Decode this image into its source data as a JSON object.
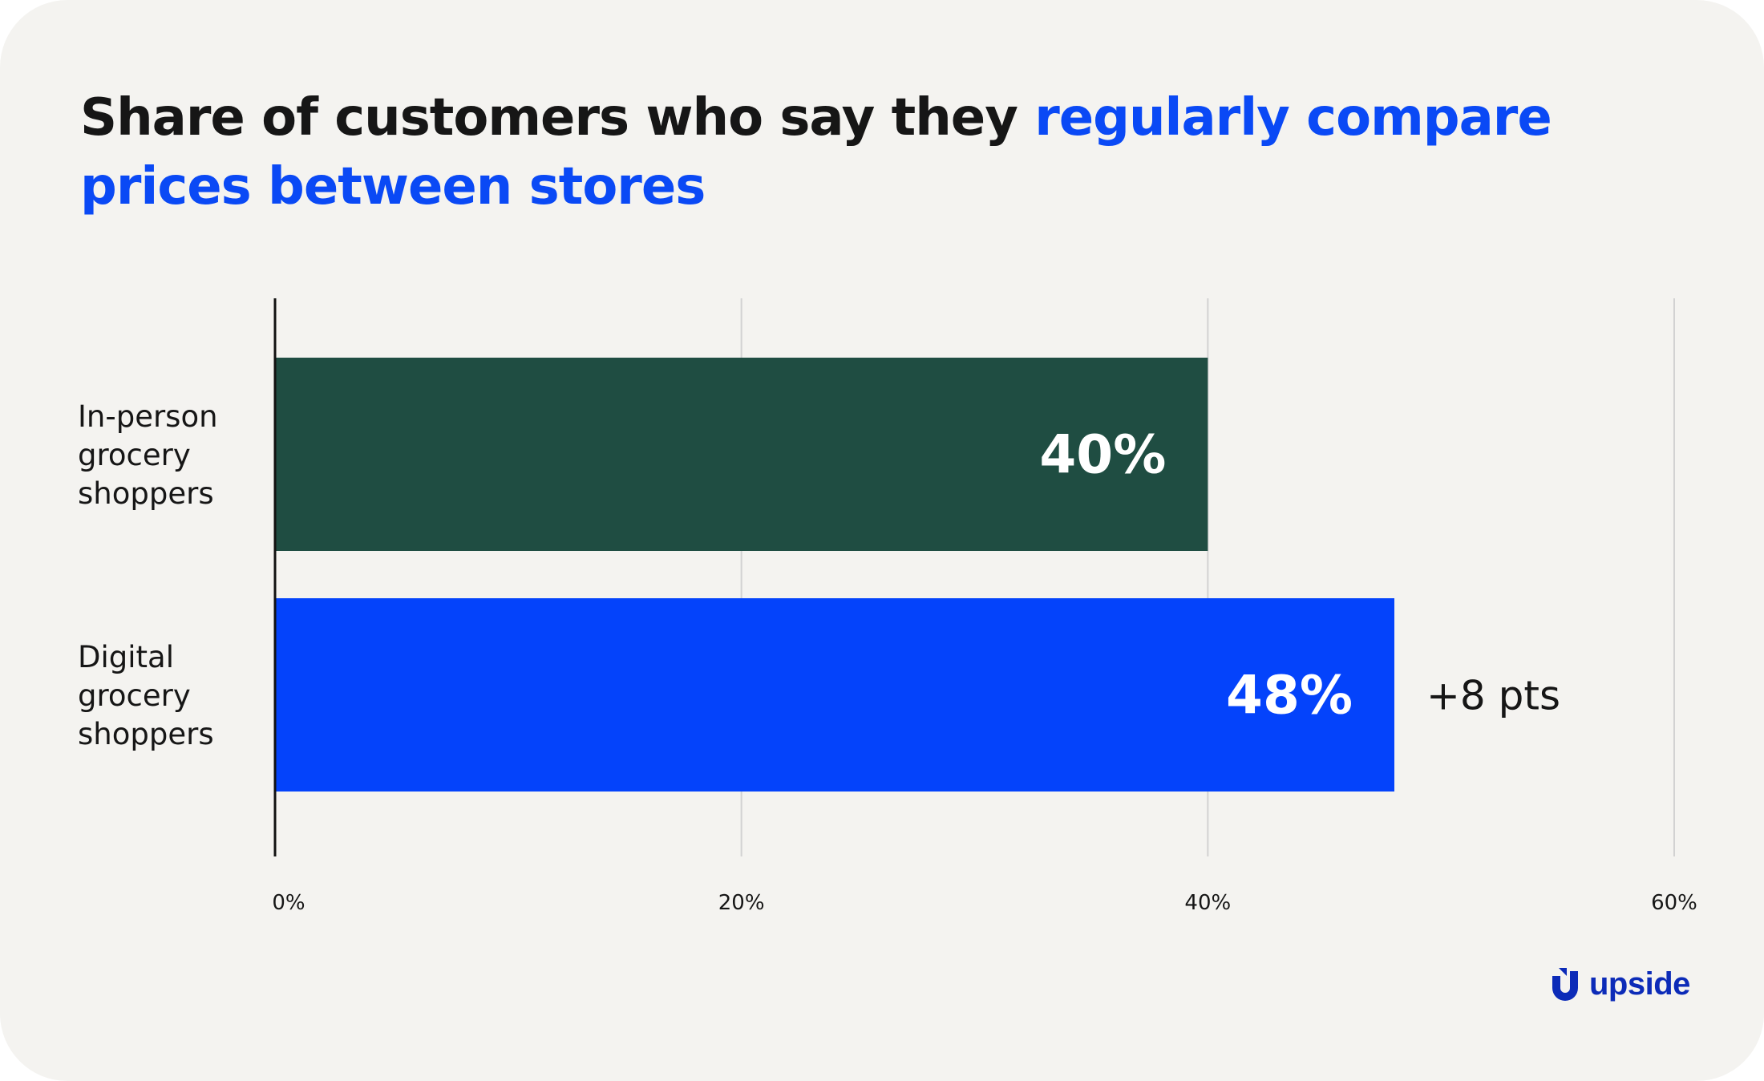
{
  "title": {
    "lead": "Share of customers who say they ",
    "highlight": "regularly compare prices between stores"
  },
  "colors": {
    "background": "#f4f3f0",
    "accent": "#0a49f5",
    "in_person_bar": "#1f4d42",
    "digital_bar": "#0443fb",
    "gridline": "#d2d2d2",
    "axis": "#111111",
    "text": "#161616",
    "logo": "#0c2bb8"
  },
  "chart_data": {
    "type": "bar",
    "orientation": "horizontal",
    "categories": [
      [
        "In-person",
        "grocery",
        "shoppers"
      ],
      [
        "Digital",
        "grocery",
        "shoppers"
      ]
    ],
    "values": [
      40,
      48
    ],
    "value_labels": [
      "40%",
      "48%"
    ],
    "bar_colors": [
      "#1f4d42",
      "#0443fb"
    ],
    "annotation": {
      "category_index": 1,
      "text": "+8 pts"
    },
    "xlim": [
      0,
      60
    ],
    "xticks": [
      0,
      20,
      40,
      60
    ],
    "xtick_labels": [
      "0%",
      "20%",
      "40%",
      "60%"
    ],
    "grid": true,
    "legend": "none",
    "xlabel": "",
    "ylabel": ""
  },
  "logo": {
    "icon": "upside-logo-icon",
    "text": "upside"
  }
}
